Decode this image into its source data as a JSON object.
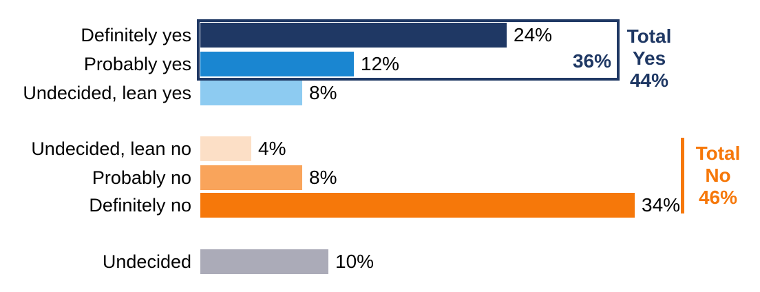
{
  "chart_data": {
    "type": "bar",
    "orientation": "horizontal",
    "unit": "%",
    "title": "",
    "xlabel": "",
    "ylabel": "",
    "xlim": [
      0,
      40
    ],
    "grid": false,
    "categories": [
      "Definitely yes",
      "Probably yes",
      "Undecided, lean yes",
      "Undecided, lean no",
      "Probably no",
      "Definitely no",
      "Undecided"
    ],
    "values": [
      24,
      12,
      8,
      4,
      8,
      34,
      10
    ],
    "value_labels": [
      "24%",
      "12%",
      "8%",
      "4%",
      "8%",
      "34%",
      "10%"
    ],
    "bar_colors": [
      "#1F3864",
      "#1A86D1",
      "#8DCBF1",
      "#FCDFC6",
      "#F9A45B",
      "#F6780A",
      "#ABABB8"
    ],
    "groups": [
      "yes",
      "yes",
      "yes",
      "no",
      "no",
      "no",
      "undecided"
    ],
    "annotations": {
      "yes_subtotal": "36%",
      "total_yes": {
        "lines": [
          "Total",
          "Yes",
          "44%"
        ],
        "color": "#1F3864"
      },
      "total_no": {
        "lines": [
          "Total",
          "No",
          "46%"
        ],
        "color": "#F6780A"
      }
    }
  },
  "colors": {
    "navy": "#1F3864",
    "blue": "#1A86D1",
    "light_blue": "#8DCBF1",
    "peach": "#FCDFC6",
    "orange": "#F9A45B",
    "dark_orange": "#F6780A",
    "gray": "#ABABB8",
    "background": "#FFFFFF",
    "text": "#000000"
  }
}
